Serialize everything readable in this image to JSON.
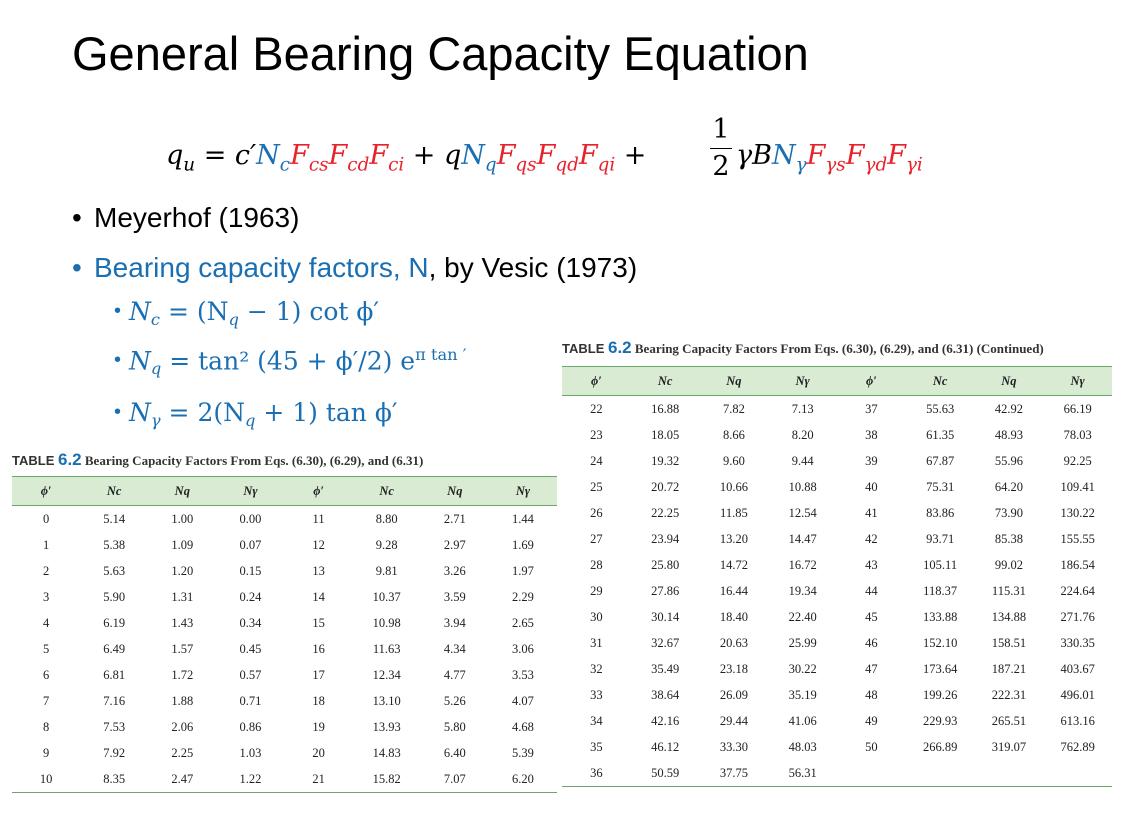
{
  "title": "General Bearing Capacity Equation",
  "equation": {
    "lhs": "q",
    "lhs_sub": "u",
    "equals": " = c′",
    "term1": [
      {
        "t": "N",
        "s": "c",
        "c": "k"
      },
      {
        "t": "F",
        "s": "cs",
        "c": "r"
      },
      {
        "t": "F",
        "s": "cd",
        "c": "r"
      },
      {
        "t": "F",
        "s": "ci",
        "c": "r"
      }
    ],
    "plus_q": " + q",
    "term2": [
      {
        "t": "N",
        "s": "q",
        "c": "k"
      },
      {
        "t": "F",
        "s": "qs",
        "c": "r"
      },
      {
        "t": "F",
        "s": "qd",
        "c": "r"
      },
      {
        "t": "F",
        "s": "qi",
        "c": "r"
      }
    ],
    "plus": " +",
    "frac_num": "1",
    "frac_den": "2",
    "gammaB": "γB",
    "term3": [
      {
        "t": "N",
        "s": "γ",
        "c": "k"
      },
      {
        "t": "F",
        "s": "γs",
        "c": "r"
      },
      {
        "t": "F",
        "s": "γd",
        "c": "r"
      },
      {
        "t": "F",
        "s": "γi",
        "c": "r"
      }
    ]
  },
  "bullets": {
    "b1": "Meyerhof (1963)",
    "b2_blue": "Bearing capacity factors, N",
    "b2_rest": ", by Vesic (1973)",
    "nc": "N",
    "nc_sub": "c",
    "nc_rhs": " = (N",
    "nc_rhs_sub": "q",
    "nc_tail": " − 1) cot ϕ′",
    "nq": "N",
    "nq_sub": "q",
    "nq_rhs": " = tan² (45 + ϕ′/2) e",
    "nq_exp": "π tan   ′",
    "ng": "N",
    "ng_sub": "γ",
    "ng_rhs": " = 2(N",
    "ng_rhs_sub": "q",
    "ng_tail": " + 1) tan ϕ′"
  },
  "table1": {
    "caption_label": "TABLE ",
    "caption_num": "6.2",
    "caption_text": "  Bearing Capacity Factors From Eqs. (6.30), (6.29), and (6.31)",
    "headers": [
      "ϕ′",
      "Nc",
      "Nq",
      "Nγ",
      "ϕ′",
      "Nc",
      "Nq",
      "Nγ"
    ],
    "rows": [
      [
        "0",
        "5.14",
        "1.00",
        "0.00",
        "11",
        "8.80",
        "2.71",
        "1.44"
      ],
      [
        "1",
        "5.38",
        "1.09",
        "0.07",
        "12",
        "9.28",
        "2.97",
        "1.69"
      ],
      [
        "2",
        "5.63",
        "1.20",
        "0.15",
        "13",
        "9.81",
        "3.26",
        "1.97"
      ],
      [
        "3",
        "5.90",
        "1.31",
        "0.24",
        "14",
        "10.37",
        "3.59",
        "2.29"
      ],
      [
        "4",
        "6.19",
        "1.43",
        "0.34",
        "15",
        "10.98",
        "3.94",
        "2.65"
      ],
      [
        "5",
        "6.49",
        "1.57",
        "0.45",
        "16",
        "11.63",
        "4.34",
        "3.06"
      ],
      [
        "6",
        "6.81",
        "1.72",
        "0.57",
        "17",
        "12.34",
        "4.77",
        "3.53"
      ],
      [
        "7",
        "7.16",
        "1.88",
        "0.71",
        "18",
        "13.10",
        "5.26",
        "4.07"
      ],
      [
        "8",
        "7.53",
        "2.06",
        "0.86",
        "19",
        "13.93",
        "5.80",
        "4.68"
      ],
      [
        "9",
        "7.92",
        "2.25",
        "1.03",
        "20",
        "14.83",
        "6.40",
        "5.39"
      ],
      [
        "10",
        "8.35",
        "2.47",
        "1.22",
        "21",
        "15.82",
        "7.07",
        "6.20"
      ]
    ]
  },
  "table2": {
    "caption_label": "TABLE ",
    "caption_num": "6.2",
    "caption_text": "  Bearing Capacity Factors From Eqs. (6.30), (6.29), and (6.31) (Continued)",
    "headers": [
      "ϕ′",
      "Nc",
      "Nq",
      "Nγ",
      "ϕ′",
      "Nc",
      "Nq",
      "Nγ"
    ],
    "rows": [
      [
        "22",
        "16.88",
        "7.82",
        "7.13",
        "37",
        "55.63",
        "42.92",
        "66.19"
      ],
      [
        "23",
        "18.05",
        "8.66",
        "8.20",
        "38",
        "61.35",
        "48.93",
        "78.03"
      ],
      [
        "24",
        "19.32",
        "9.60",
        "9.44",
        "39",
        "67.87",
        "55.96",
        "92.25"
      ],
      [
        "25",
        "20.72",
        "10.66",
        "10.88",
        "40",
        "75.31",
        "64.20",
        "109.41"
      ],
      [
        "26",
        "22.25",
        "11.85",
        "12.54",
        "41",
        "83.86",
        "73.90",
        "130.22"
      ],
      [
        "27",
        "23.94",
        "13.20",
        "14.47",
        "42",
        "93.71",
        "85.38",
        "155.55"
      ],
      [
        "28",
        "25.80",
        "14.72",
        "16.72",
        "43",
        "105.11",
        "99.02",
        "186.54"
      ],
      [
        "29",
        "27.86",
        "16.44",
        "19.34",
        "44",
        "118.37",
        "115.31",
        "224.64"
      ],
      [
        "30",
        "30.14",
        "18.40",
        "22.40",
        "45",
        "133.88",
        "134.88",
        "271.76"
      ],
      [
        "31",
        "32.67",
        "20.63",
        "25.99",
        "46",
        "152.10",
        "158.51",
        "330.35"
      ],
      [
        "32",
        "35.49",
        "23.18",
        "30.22",
        "47",
        "173.64",
        "187.21",
        "403.67"
      ],
      [
        "33",
        "38.64",
        "26.09",
        "35.19",
        "48",
        "199.26",
        "222.31",
        "496.01"
      ],
      [
        "34",
        "42.16",
        "29.44",
        "41.06",
        "49",
        "229.93",
        "265.51",
        "613.16"
      ],
      [
        "35",
        "46.12",
        "33.30",
        "48.03",
        "50",
        "266.89",
        "319.07",
        "762.89"
      ],
      [
        "36",
        "50.59",
        "37.75",
        "56.31",
        "",
        "",
        "",
        ""
      ]
    ]
  }
}
